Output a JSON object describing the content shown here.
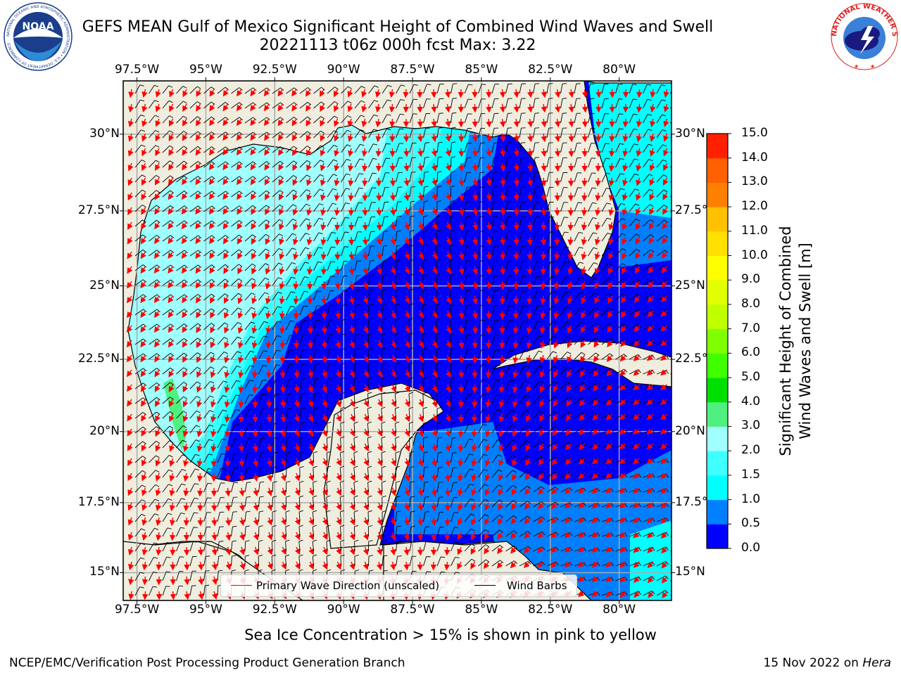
{
  "title": {
    "line1": "GEFS MEAN Gulf of Mexico Significant Height of Combined Wind Waves and Swell",
    "line2": "20221113 t06z 000h fcst   Max: 3.22"
  },
  "map": {
    "longitude_labels": [
      "97.5°W",
      "95°W",
      "92.5°W",
      "90°W",
      "87.5°W",
      "85°W",
      "82.5°W",
      "80°W"
    ],
    "latitude_labels": [
      "30°N",
      "27.5°N",
      "25°N",
      "22.5°N",
      "20°N",
      "17.5°N",
      "15°N"
    ],
    "longitude_values": [
      -97.5,
      -95,
      -92.5,
      -90,
      -87.5,
      -85,
      -82.5,
      -80
    ],
    "latitude_values": [
      30,
      27.5,
      25,
      22.5,
      20,
      17.5,
      15
    ],
    "extent": {
      "lon_min": -98,
      "lon_max": -78.1,
      "lat_min": 14,
      "lat_max": 31.7
    },
    "land_color": "#efedde",
    "grid": true,
    "field_max": 3.22
  },
  "legend": {
    "wave_direction": "Primary Wave Direction (unscaled)",
    "wind_barbs": "Wind Barbs",
    "wave_color": "#ff0000",
    "barb_color": "#000000"
  },
  "colorbar": {
    "title_line1": "Significant Height of Combined",
    "title_line2": "Wind Waves and Swell [m]",
    "ticks": [
      "15.0",
      "14.0",
      "13.0",
      "12.0",
      "11.0",
      "10.0",
      "9.0",
      "8.0",
      "7.0",
      "6.0",
      "5.0",
      "4.0",
      "3.0",
      "2.0",
      "1.5",
      "1.0",
      "0.5",
      "0.0"
    ],
    "colors": [
      "#0000ff",
      "#0080ff",
      "#00ffff",
      "#40ffff",
      "#a0ffff",
      "#50f080",
      "#00e000",
      "#40ff00",
      "#80ff00",
      "#c0ff00",
      "#e0ff00",
      "#ffff00",
      "#ffe000",
      "#ffc000",
      "#ff8000",
      "#ff6000",
      "#ff2000"
    ]
  },
  "ice_note": "Sea Ice Concentration > 15% is shown in pink to yellow",
  "footer": {
    "left": "NCEP/EMC/Verification Post Processing Product Generation Branch",
    "date": "15 Nov 2022 on ",
    "machine": "Hera"
  },
  "logos": {
    "noaa_text": "NOAA",
    "noaa_ring_text": "NATIONAL OCEANIC AND ATMOSPHERIC ADMINISTRATION • U.S. DEPARTMENT OF COMMERCE",
    "nws_ring_text": "NATIONAL WEATHER SERVICE"
  }
}
